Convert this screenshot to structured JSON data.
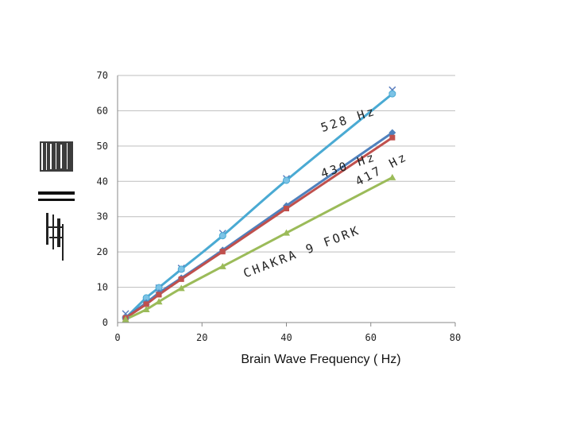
{
  "chart_data": {
    "type": "scatter",
    "xlabel": "Brain Wave Frequency  ( Hz)",
    "ylabel": "",
    "xlim": [
      0,
      80
    ],
    "ylim": [
      0,
      70
    ],
    "xticks": [
      "0",
      "20",
      "40",
      "60",
      "80"
    ],
    "yticks": [
      "0",
      "10",
      "20",
      "30",
      "40",
      "50",
      "60",
      "70"
    ],
    "grid": "horizontal",
    "series": [
      {
        "marker": "x",
        "color": "#5b7fbf",
        "line": false,
        "points": [
          [
            1.9,
            2.5
          ],
          [
            6.8,
            5.8
          ],
          [
            9.8,
            9.8
          ],
          [
            15.1,
            15.4
          ],
          [
            24.9,
            25.3
          ],
          [
            40.0,
            40.8
          ],
          [
            65.1,
            65.9
          ]
        ]
      },
      {
        "marker": "circle",
        "color": "#4aaad3",
        "line": true,
        "points": [
          [
            1.9,
            1.3
          ],
          [
            6.8,
            7.0
          ],
          [
            9.8,
            9.9
          ],
          [
            15.1,
            15.1
          ],
          [
            24.9,
            24.6
          ],
          [
            40.0,
            40.3
          ],
          [
            65.1,
            64.8
          ]
        ]
      },
      {
        "marker": "diamond",
        "color": "#4f81bd",
        "line": true,
        "points": [
          [
            1.9,
            1.4
          ],
          [
            6.8,
            5.6
          ],
          [
            9.8,
            8.4
          ],
          [
            15.1,
            12.6
          ],
          [
            24.9,
            20.5
          ],
          [
            40.0,
            33.1
          ],
          [
            65.1,
            53.8
          ]
        ]
      },
      {
        "marker": "square",
        "color": "#c0504d",
        "line": true,
        "points": [
          [
            1.9,
            1.3
          ],
          [
            6.8,
            5.2
          ],
          [
            9.8,
            7.9
          ],
          [
            15.1,
            12.3
          ],
          [
            24.9,
            20.1
          ],
          [
            40.0,
            32.3
          ],
          [
            65.1,
            52.4
          ]
        ]
      },
      {
        "marker": "triangle",
        "color": "#9bbb59",
        "line": true,
        "points": [
          [
            1.9,
            0.9
          ],
          [
            6.8,
            3.7
          ],
          [
            9.8,
            5.9
          ],
          [
            15.1,
            9.7
          ],
          [
            24.9,
            15.9
          ],
          [
            40.0,
            25.4
          ],
          [
            65.1,
            41.1
          ]
        ]
      }
    ],
    "annotations": [
      {
        "text": "528 Hz",
        "x": 55.0,
        "y": 56.5,
        "angle": -18
      },
      {
        "text": "430 Hz",
        "x": 55.0,
        "y": 43.5,
        "angle": -18
      },
      {
        "text": "417 Hz",
        "x": 63.0,
        "y": 42.5,
        "angle": -28
      },
      {
        "text": "CHAKRA 9 FORK",
        "x": 44.0,
        "y": 19.0,
        "angle": -21
      }
    ]
  }
}
